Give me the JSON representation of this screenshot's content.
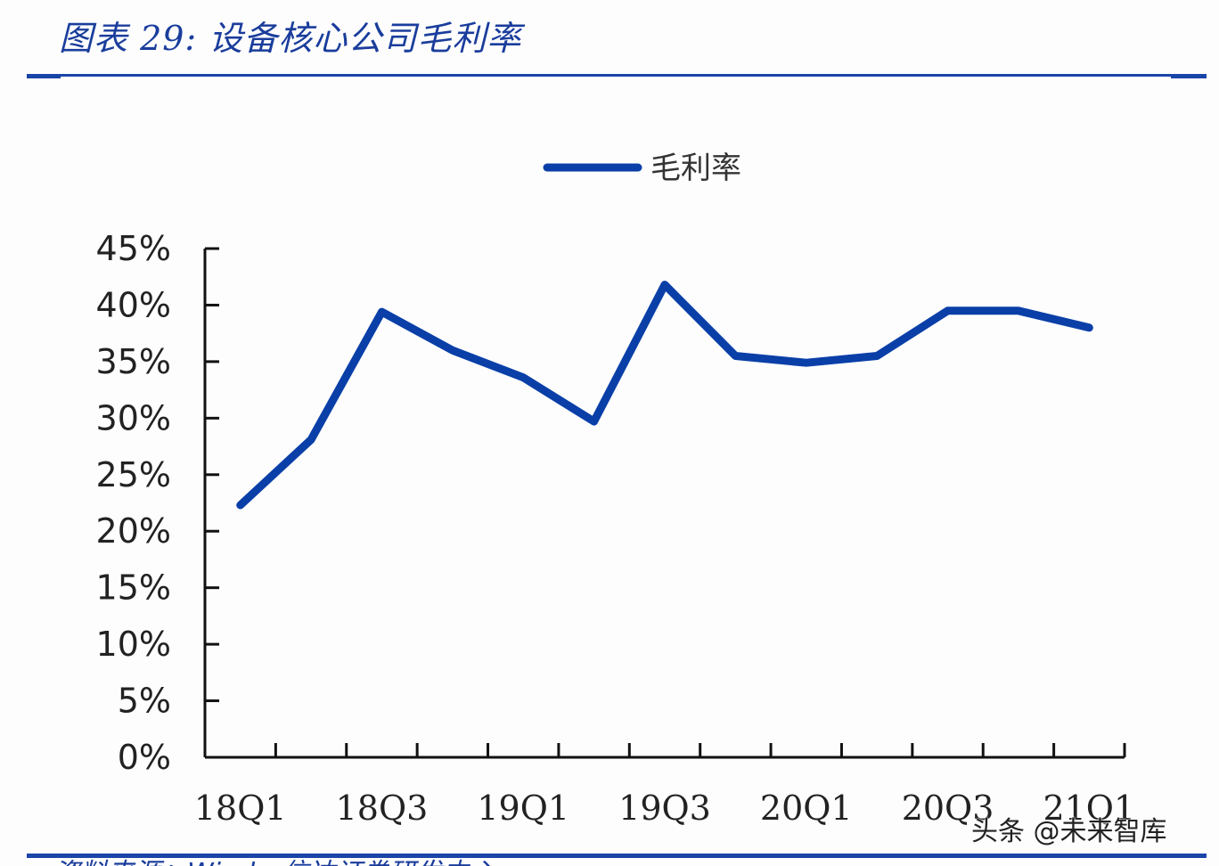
{
  "header": {
    "title": "图表 29:  设备核心公司毛利率"
  },
  "footer": {
    "source_text": "资料来源：Wind，信达证券研发中心"
  },
  "watermark": "头条 @未来智库",
  "colors": {
    "accent": "#1a45a8",
    "line": "#0a3fa8",
    "axis": "#111111"
  },
  "chart_data": {
    "type": "line",
    "title": "",
    "xlabel": "",
    "ylabel": "",
    "legend": {
      "entries": [
        "毛利率"
      ],
      "position": "top"
    },
    "grid": false,
    "ylim": [
      0,
      45
    ],
    "yticks": [
      "0%",
      "5%",
      "10%",
      "15%",
      "20%",
      "25%",
      "30%",
      "35%",
      "40%",
      "45%"
    ],
    "x": [
      "18Q1",
      "18Q2",
      "18Q3",
      "18Q4",
      "19Q1",
      "19Q2",
      "19Q3",
      "19Q4",
      "20Q1",
      "20Q2",
      "20Q3",
      "20Q4",
      "21Q1"
    ],
    "xtick_labels_shown": [
      "18Q1",
      "18Q3",
      "19Q1",
      "19Q3",
      "20Q1",
      "20Q3",
      "21Q1"
    ],
    "series": [
      {
        "name": "毛利率",
        "values": [
          22.3,
          28.1,
          39.4,
          36.0,
          33.6,
          29.7,
          41.8,
          35.5,
          34.9,
          35.5,
          39.5,
          39.5,
          38.0
        ],
        "unit": "%"
      }
    ]
  }
}
